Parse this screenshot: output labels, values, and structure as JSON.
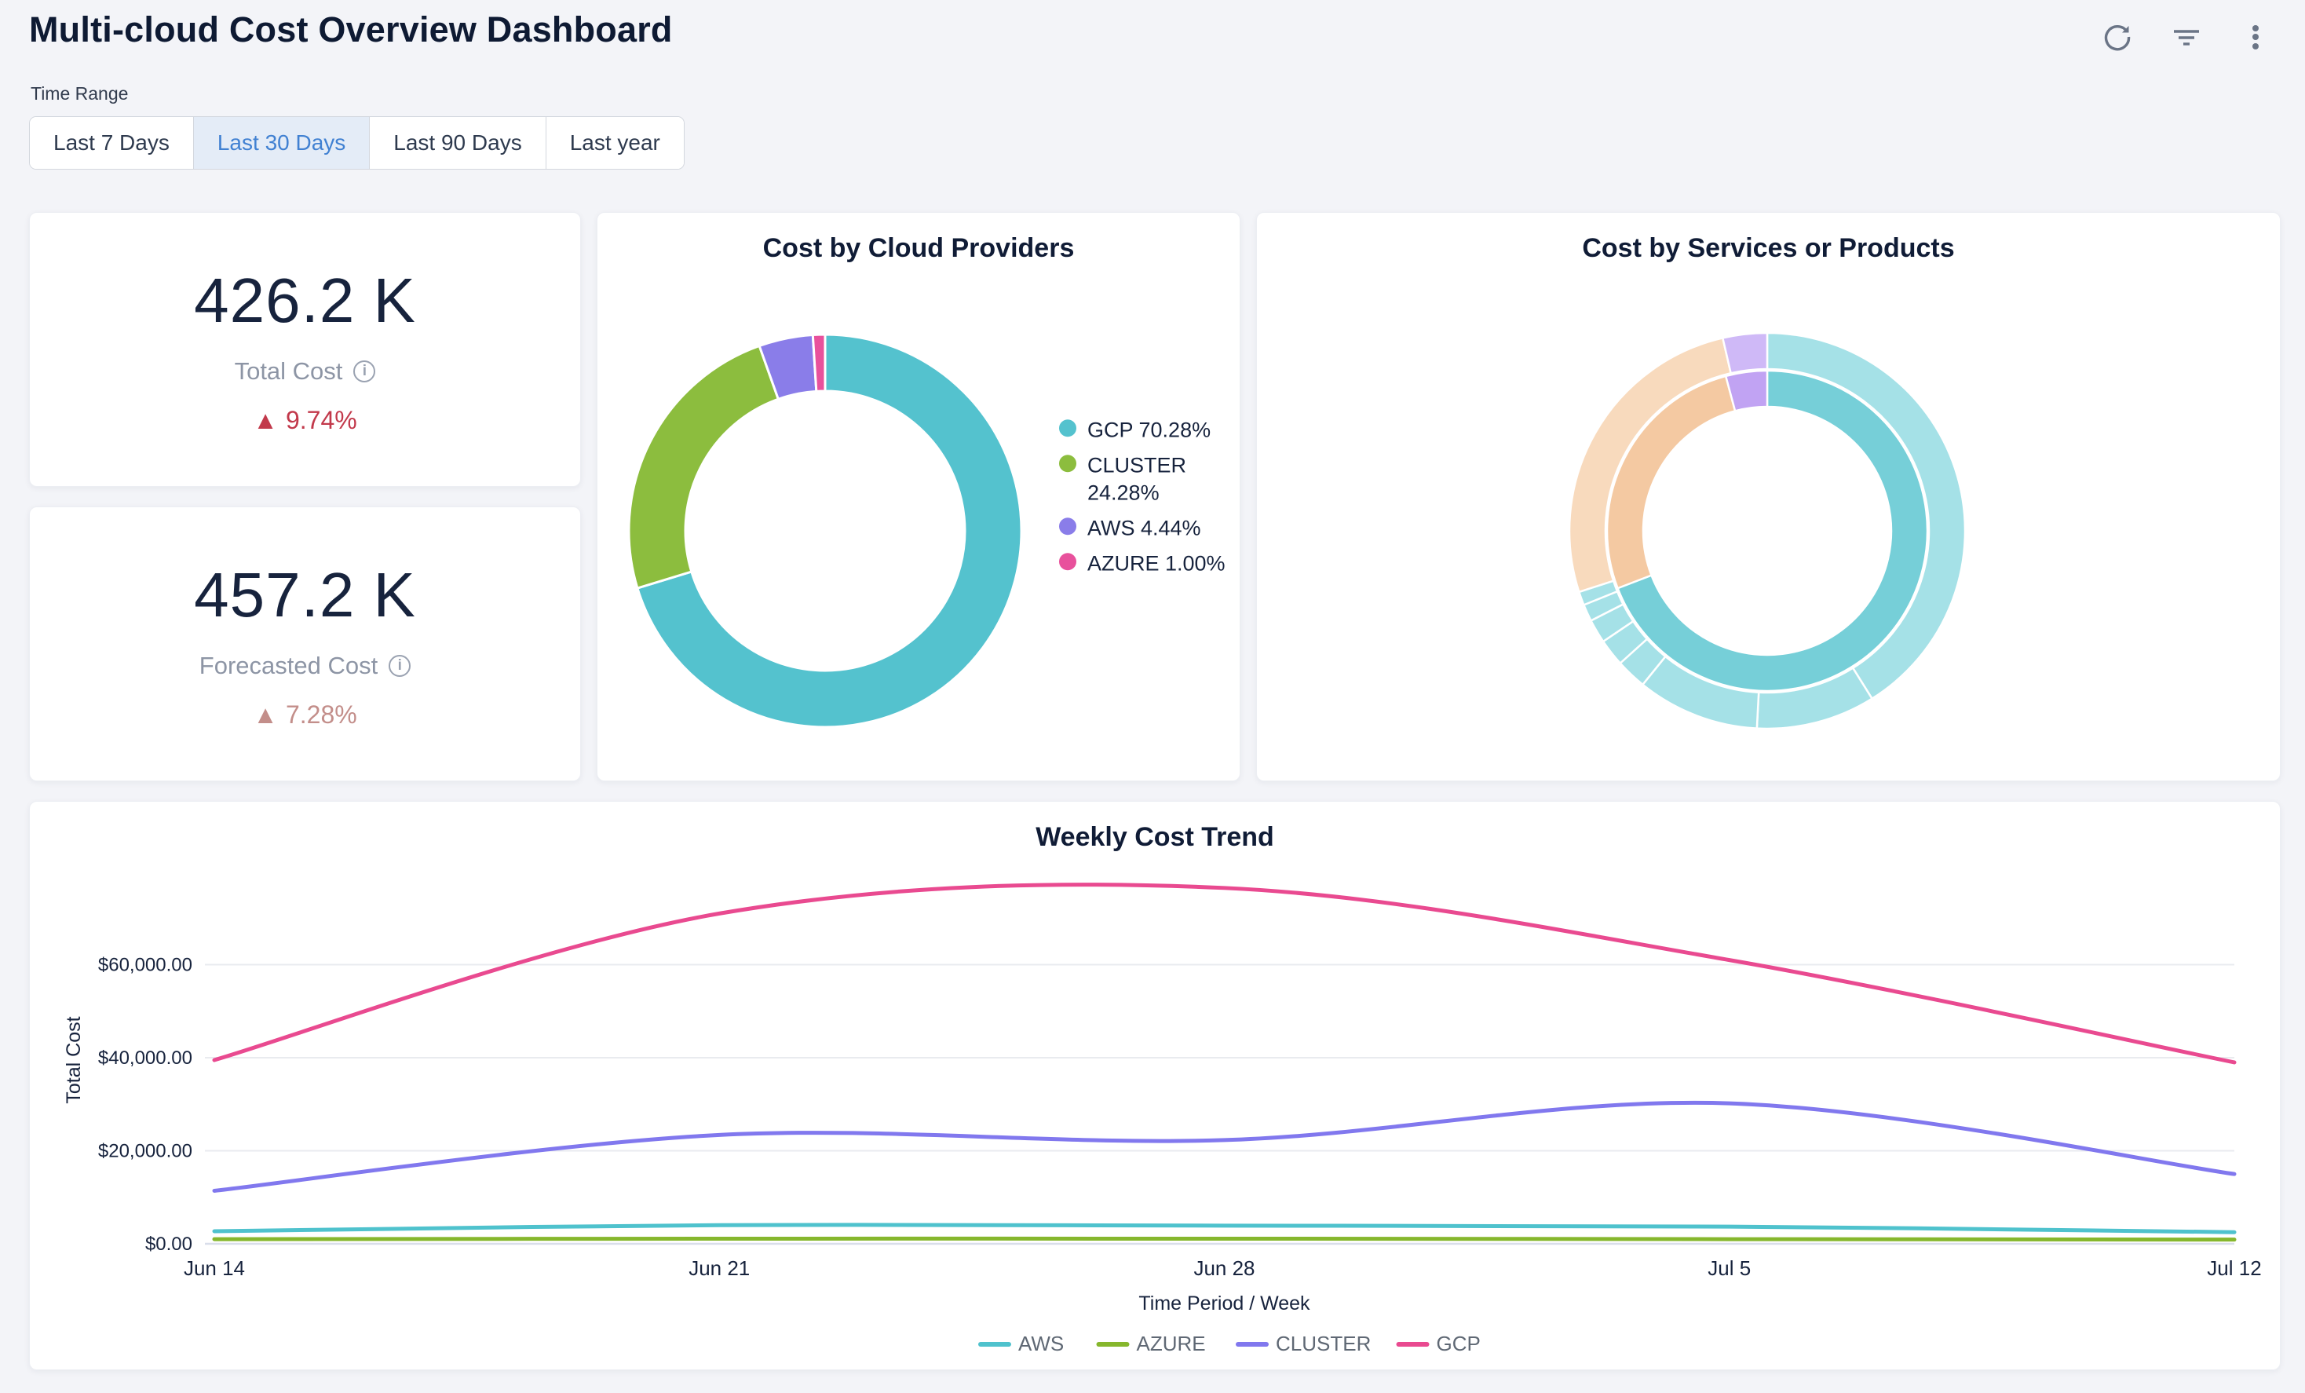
{
  "header": {
    "title": "Multi-cloud Cost Overview Dashboard",
    "icons": [
      "refresh-icon",
      "filter-icon",
      "more-menu-icon"
    ]
  },
  "time_range": {
    "label": "Time Range",
    "options": [
      "Last 7 Days",
      "Last 30 Days",
      "Last 90 Days",
      "Last year"
    ],
    "selected": "Last 30 Days",
    "selected_color": "#4181d2",
    "selected_bg": "#e4ecf7"
  },
  "kpis": [
    {
      "value": "426.2 K",
      "label": "Total Cost",
      "symbol": "▲",
      "delta": "9.74%",
      "direction": "up",
      "delta_color": "#c2394b"
    },
    {
      "value": "457.2 K",
      "label": "Forecasted Cost",
      "symbol": "▲",
      "delta": "7.28%",
      "direction": "up",
      "delta_color": "#c38e8a"
    }
  ],
  "chart_data": [
    {
      "id": "providers_donut",
      "type": "pie",
      "title": "Cost by Cloud Providers",
      "legend_position": "right",
      "segments": [
        {
          "label": "GCP",
          "pct": 70.28,
          "color": "#54c2ce",
          "legend": "GCP 70.28%"
        },
        {
          "label": "CLUSTER",
          "pct": 24.28,
          "color": "#8cbd3e",
          "legend": "CLUSTER 24.28%"
        },
        {
          "label": "AWS",
          "pct": 4.44,
          "color": "#8a7de9",
          "legend": "AWS 4.44%"
        },
        {
          "label": "AZURE",
          "pct": 1.0,
          "color": "#e8519c",
          "legend": "AZURE 1.00%"
        }
      ]
    },
    {
      "id": "services_sunburst",
      "type": "pie",
      "subtype": "sunburst",
      "title": "Cost by Services or Products",
      "rings": [
        {
          "level": "inner",
          "segments": [
            {
              "start": 0,
              "end": 249,
              "color": "#76cfd8"
            },
            {
              "start": 249,
              "end": 345,
              "color": "#f4c9a2"
            },
            {
              "start": 345,
              "end": 360,
              "color": "#c1a3f3"
            }
          ]
        },
        {
          "level": "outer",
          "segments": [
            {
              "start": 0,
              "end": 148,
              "color": "#a5e1e7"
            },
            {
              "start": 148,
              "end": 183,
              "color": "#a5e1e7"
            },
            {
              "start": 183,
              "end": 219,
              "color": "#a5e1e7"
            },
            {
              "start": 219,
              "end": 228,
              "color": "#a5e1e7"
            },
            {
              "start": 228,
              "end": 236,
              "color": "#a5e1e7"
            },
            {
              "start": 236,
              "end": 243,
              "color": "#a5e1e7"
            },
            {
              "start": 243,
              "end": 248,
              "color": "#a5e1e7"
            },
            {
              "start": 248,
              "end": 252,
              "color": "#a5e1e7"
            },
            {
              "start": 252,
              "end": 347,
              "color": "#f8dabd"
            },
            {
              "start": 347,
              "end": 360,
              "color": "#cfb9f7"
            }
          ]
        }
      ]
    },
    {
      "id": "weekly_trend",
      "type": "line",
      "title": "Weekly Cost Trend",
      "xlabel": "Time Period / Week",
      "ylabel": "Total Cost",
      "x": [
        "Jun 14",
        "Jun 21",
        "Jun 28",
        "Jul 5",
        "Jul 12"
      ],
      "y_ticks": [
        0,
        20000,
        40000,
        60000
      ],
      "y_tick_labels": [
        "$0.00",
        "$20,000.00",
        "$40,000.00",
        "$60,000.00"
      ],
      "ylim": [
        0,
        79000
      ],
      "grid": true,
      "legend_position": "bottom",
      "series": [
        {
          "name": "AWS",
          "color": "#4fc2cd",
          "values": [
            2700,
            4000,
            3900,
            3700,
            2500
          ]
        },
        {
          "name": "AZURE",
          "color": "#86b72d",
          "values": [
            1000,
            1100,
            1100,
            1000,
            900
          ]
        },
        {
          "name": "CLUSTER",
          "color": "#8178ee",
          "values": [
            11400,
            23400,
            22300,
            30200,
            15000
          ]
        },
        {
          "name": "GCP",
          "color": "#e94a90",
          "values": [
            39500,
            71000,
            76500,
            61000,
            39000
          ]
        }
      ]
    }
  ]
}
